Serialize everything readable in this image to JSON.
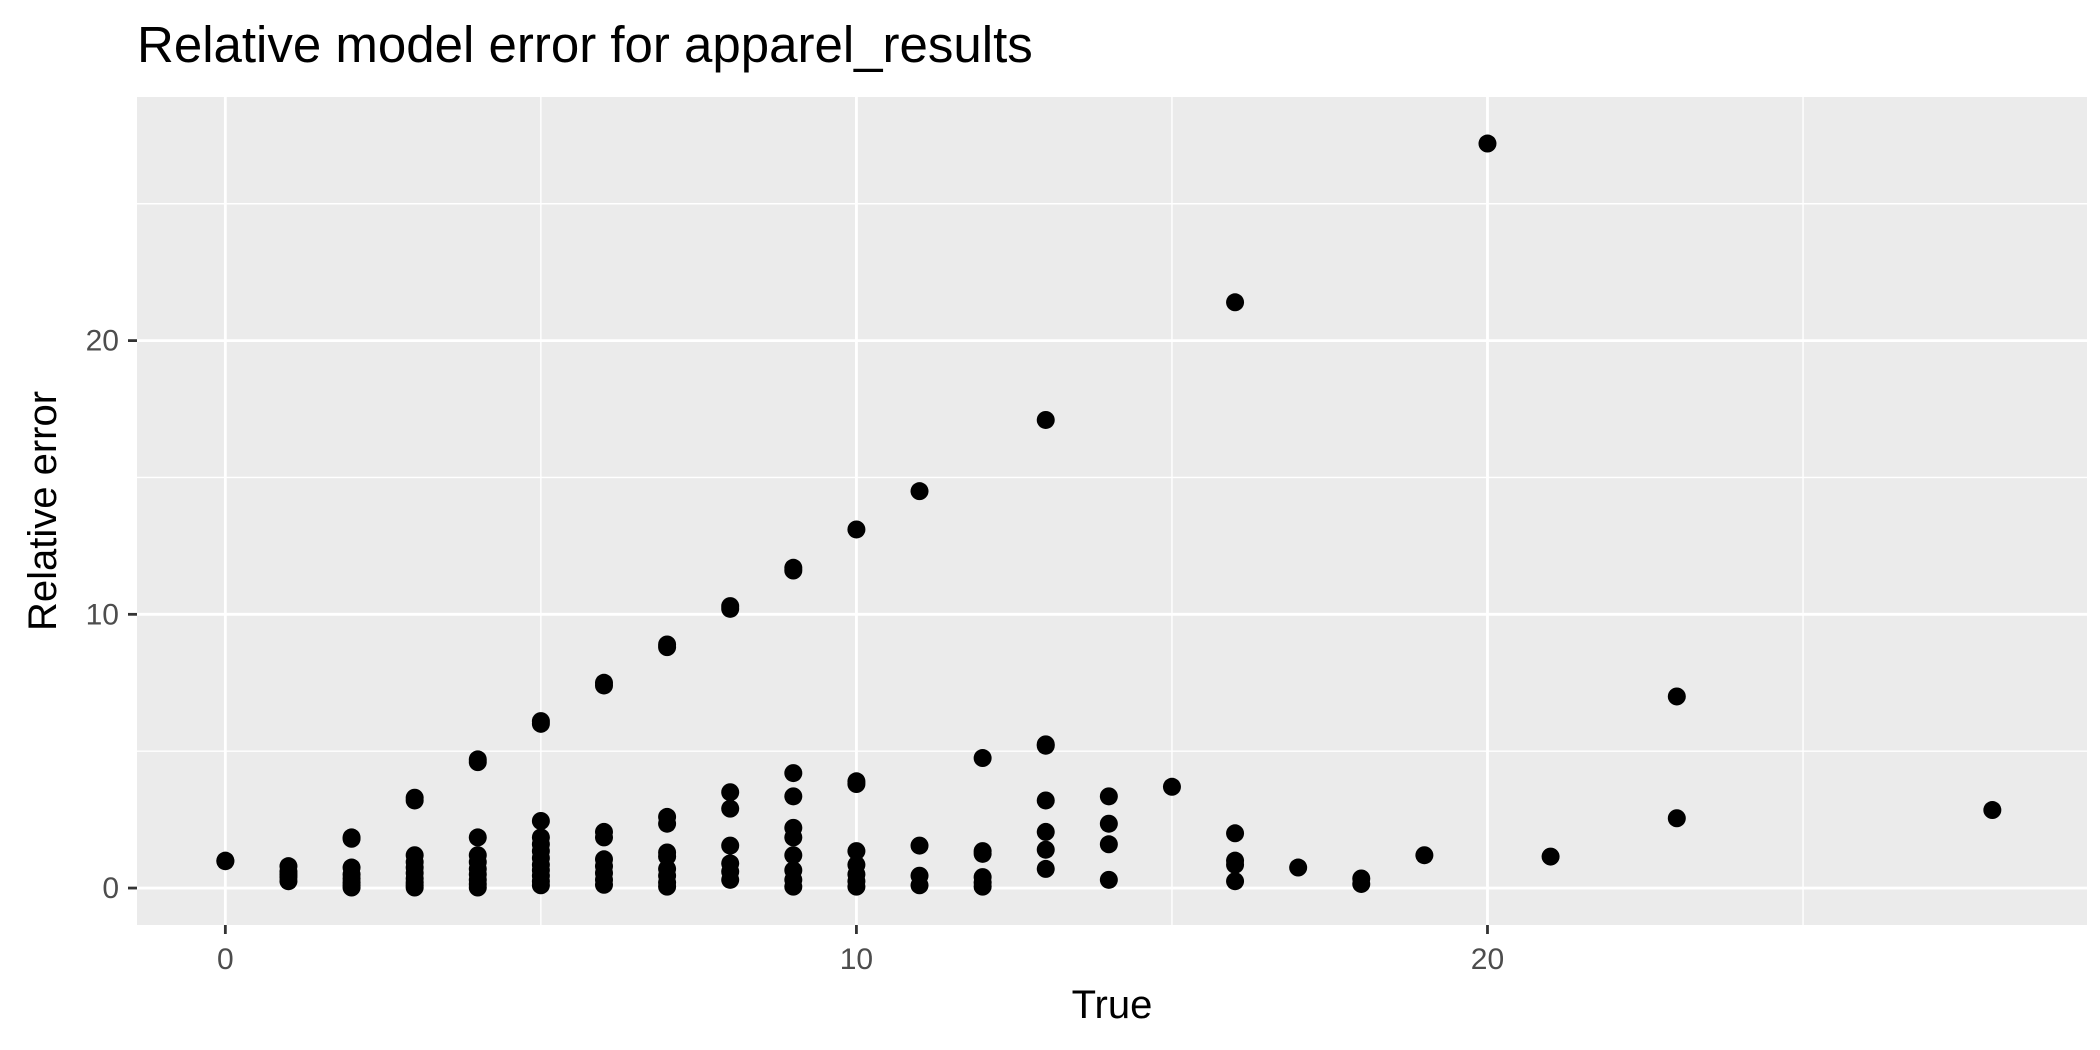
{
  "chart_data": {
    "type": "scatter",
    "title": "Relative model error for apparel_results",
    "xlabel": "True",
    "ylabel": "Relative error",
    "xlim": [
      -1.4,
      29.5
    ],
    "ylim": [
      -1.35,
      28.9
    ],
    "x_ticks": [
      0,
      10,
      20
    ],
    "x_tick_labels": [
      "0",
      "10",
      "20"
    ],
    "y_ticks": [
      0,
      10,
      20
    ],
    "y_tick_labels": [
      "0",
      "10",
      "20"
    ],
    "x_minor": [
      5,
      15,
      25
    ],
    "y_minor": [
      5,
      15,
      25
    ],
    "grid": true,
    "legend": "none",
    "colors": {
      "panel": "#ebebeb",
      "grid": "#ffffff",
      "point": "#000000",
      "tick_text": "#4d4d4d",
      "title": "#000000"
    },
    "points": [
      [
        0,
        1.0
      ],
      [
        0,
        0.98
      ],
      [
        1,
        0.8
      ],
      [
        1,
        0.6
      ],
      [
        1,
        0.5
      ],
      [
        1,
        0.4
      ],
      [
        1,
        0.25
      ],
      [
        2,
        1.85
      ],
      [
        2,
        1.8
      ],
      [
        2,
        0.75
      ],
      [
        2,
        0.5
      ],
      [
        2,
        0.35
      ],
      [
        2,
        0.2
      ],
      [
        2,
        0.1
      ],
      [
        2,
        0.02
      ],
      [
        3,
        3.3
      ],
      [
        3,
        3.2
      ],
      [
        3,
        1.2
      ],
      [
        3,
        0.95
      ],
      [
        3,
        0.75
      ],
      [
        3,
        0.55
      ],
      [
        3,
        0.35
      ],
      [
        3,
        0.2
      ],
      [
        3,
        0.1
      ],
      [
        3,
        0.02
      ],
      [
        4,
        4.7
      ],
      [
        4,
        4.6
      ],
      [
        4,
        1.85
      ],
      [
        4,
        1.2
      ],
      [
        4,
        0.95
      ],
      [
        4,
        0.7
      ],
      [
        4,
        0.5
      ],
      [
        4,
        0.3
      ],
      [
        4,
        0.15
      ],
      [
        4,
        0.02
      ],
      [
        5,
        6.1
      ],
      [
        5,
        6.0
      ],
      [
        5,
        2.45
      ],
      [
        5,
        1.85
      ],
      [
        5,
        1.6
      ],
      [
        5,
        1.35
      ],
      [
        5,
        1.1
      ],
      [
        5,
        0.85
      ],
      [
        5,
        0.65
      ],
      [
        5,
        0.45
      ],
      [
        5,
        0.25
      ],
      [
        5,
        0.1
      ],
      [
        6,
        7.5
      ],
      [
        6,
        7.4
      ],
      [
        6,
        2.05
      ],
      [
        6,
        1.85
      ],
      [
        6,
        1.05
      ],
      [
        6,
        0.8
      ],
      [
        6,
        0.55
      ],
      [
        6,
        0.3
      ],
      [
        6,
        0.12
      ],
      [
        7,
        8.9
      ],
      [
        7,
        8.8
      ],
      [
        7,
        2.6
      ],
      [
        7,
        2.35
      ],
      [
        7,
        1.3
      ],
      [
        7,
        1.15
      ],
      [
        7,
        0.7
      ],
      [
        7,
        0.45
      ],
      [
        7,
        0.2
      ],
      [
        7,
        0.05
      ],
      [
        8,
        10.3
      ],
      [
        8,
        10.2
      ],
      [
        8,
        3.5
      ],
      [
        8,
        2.9
      ],
      [
        8,
        1.55
      ],
      [
        8,
        0.9
      ],
      [
        8,
        0.6
      ],
      [
        8,
        0.3
      ],
      [
        9,
        11.7
      ],
      [
        9,
        11.6
      ],
      [
        9,
        4.2
      ],
      [
        9,
        3.35
      ],
      [
        9,
        2.2
      ],
      [
        9,
        1.85
      ],
      [
        9,
        1.2
      ],
      [
        9,
        0.65
      ],
      [
        9,
        0.3
      ],
      [
        9,
        0.05
      ],
      [
        10,
        13.1
      ],
      [
        10,
        3.9
      ],
      [
        10,
        3.8
      ],
      [
        10,
        1.35
      ],
      [
        10,
        0.85
      ],
      [
        10,
        0.5
      ],
      [
        10,
        0.25
      ],
      [
        10,
        0.05
      ],
      [
        11,
        14.5
      ],
      [
        11,
        1.55
      ],
      [
        11,
        0.45
      ],
      [
        11,
        0.1
      ],
      [
        12,
        4.75
      ],
      [
        12,
        1.35
      ],
      [
        12,
        1.25
      ],
      [
        12,
        0.4
      ],
      [
        12,
        0.2
      ],
      [
        12,
        0.05
      ],
      [
        13,
        17.1
      ],
      [
        13,
        5.25
      ],
      [
        13,
        5.2
      ],
      [
        13,
        3.2
      ],
      [
        13,
        2.05
      ],
      [
        13,
        1.4
      ],
      [
        13,
        0.7
      ],
      [
        14,
        3.35
      ],
      [
        14,
        2.35
      ],
      [
        14,
        1.6
      ],
      [
        14,
        0.3
      ],
      [
        15,
        3.7
      ],
      [
        16,
        21.4
      ],
      [
        16,
        2.0
      ],
      [
        16,
        1.0
      ],
      [
        16,
        0.85
      ],
      [
        16,
        0.25
      ],
      [
        17,
        0.75
      ],
      [
        18,
        0.35
      ],
      [
        18,
        0.15
      ],
      [
        19,
        1.2
      ],
      [
        20,
        27.2
      ],
      [
        21,
        1.15
      ],
      [
        23,
        7.0
      ],
      [
        23,
        2.55
      ],
      [
        28,
        2.85
      ]
    ]
  }
}
